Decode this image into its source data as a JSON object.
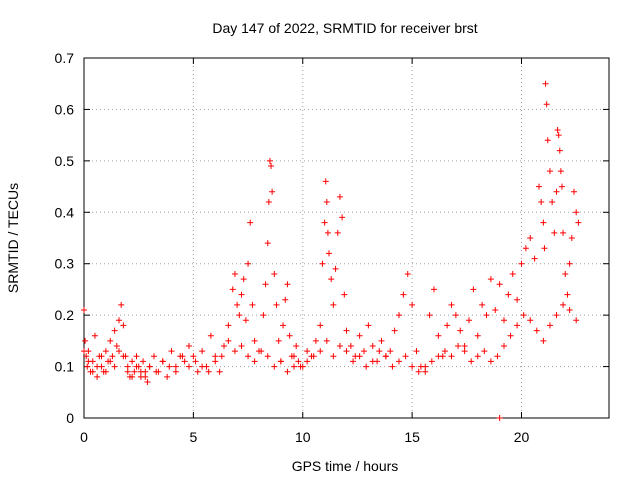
{
  "chart_data": {
    "type": "scatter",
    "title": "Day 147 of 2022, SRMTID for receiver brst",
    "xlabel": "GPS time / hours",
    "ylabel": "SRMTID / TECUs",
    "xlim": [
      0,
      24
    ],
    "ylim": [
      0,
      0.7
    ],
    "xticks": [
      0,
      5,
      10,
      15,
      20
    ],
    "yticks": [
      0,
      0.1,
      0.2,
      0.3,
      0.4,
      0.5,
      0.6,
      0.7
    ],
    "xtick_labels": [
      "0",
      "5",
      "10",
      "15",
      "20"
    ],
    "ytick_labels": [
      "0",
      "0.1",
      "0.2",
      "0.3",
      "0.4",
      "0.5",
      "0.6",
      "0.7"
    ],
    "grid": true,
    "marker": "+",
    "color": "#ff0000",
    "series": [
      {
        "name": "SRMTID",
        "x": [
          0.0,
          0.05,
          0.1,
          0.15,
          0.2,
          0.3,
          0.4,
          0.5,
          0.6,
          0.7,
          0.8,
          0.9,
          1.0,
          1.1,
          1.2,
          1.3,
          1.4,
          1.5,
          1.6,
          1.7,
          1.8,
          1.9,
          2.0,
          2.1,
          2.2,
          2.3,
          2.4,
          2.5,
          2.6,
          2.7,
          2.8,
          2.9,
          3.0,
          3.2,
          3.4,
          3.6,
          3.8,
          4.0,
          4.2,
          4.4,
          4.6,
          4.8,
          5.0,
          5.2,
          5.4,
          5.6,
          5.8,
          6.0,
          6.2,
          6.4,
          6.6,
          6.8,
          6.9,
          7.0,
          7.1,
          7.2,
          7.3,
          7.4,
          7.5,
          7.6,
          7.7,
          7.8,
          8.0,
          8.2,
          8.3,
          8.4,
          8.45,
          8.5,
          8.55,
          8.6,
          8.7,
          8.8,
          8.9,
          9.0,
          9.1,
          9.2,
          9.3,
          9.4,
          9.5,
          9.6,
          9.7,
          9.8,
          10.0,
          10.2,
          10.4,
          10.6,
          10.8,
          10.9,
          11.0,
          11.05,
          11.1,
          11.15,
          11.2,
          11.3,
          11.4,
          11.5,
          11.6,
          11.7,
          11.8,
          11.9,
          12.0,
          12.2,
          12.4,
          12.6,
          12.8,
          13.0,
          13.2,
          13.4,
          13.6,
          13.8,
          14.0,
          14.2,
          14.4,
          14.6,
          14.8,
          15.0,
          15.2,
          15.4,
          15.6,
          15.8,
          16.0,
          16.2,
          16.4,
          16.6,
          16.8,
          17.0,
          17.2,
          17.4,
          17.6,
          17.8,
          18.0,
          18.2,
          18.4,
          18.6,
          18.8,
          19.0,
          19.2,
          19.4,
          19.6,
          19.8,
          20.0,
          20.2,
          20.4,
          20.6,
          20.8,
          20.9,
          21.0,
          21.05,
          21.1,
          21.15,
          21.2,
          21.3,
          21.4,
          21.5,
          21.6,
          21.65,
          21.7,
          21.75,
          21.8,
          21.85,
          21.9,
          22.0,
          22.1,
          22.2,
          22.3,
          22.4,
          22.5,
          22.6,
          0.0,
          0.2,
          0.4,
          0.6,
          0.8,
          1.0,
          1.2,
          1.4,
          1.6,
          1.8,
          2.0,
          2.2,
          2.4,
          2.6,
          2.8,
          3.0,
          3.3,
          3.6,
          3.9,
          4.2,
          4.5,
          4.8,
          5.1,
          5.4,
          5.7,
          6.0,
          6.3,
          6.6,
          6.9,
          7.2,
          7.5,
          7.8,
          8.1,
          8.4,
          8.7,
          9.0,
          9.3,
          9.6,
          9.9,
          10.2,
          10.5,
          10.8,
          11.1,
          11.4,
          11.7,
          12.0,
          12.3,
          12.6,
          12.9,
          13.2,
          13.5,
          13.8,
          14.1,
          14.4,
          14.7,
          15.0,
          15.3,
          15.6,
          15.9,
          16.2,
          16.5,
          16.8,
          17.1,
          17.4,
          17.7,
          18.0,
          18.3,
          18.6,
          18.9,
          19.2,
          19.5,
          19.8,
          20.1,
          20.4,
          20.7,
          21.0,
          21.3,
          21.6,
          21.9,
          22.2,
          22.5,
          19.0
        ],
        "y": [
          0.21,
          0.15,
          0.12,
          0.1,
          0.13,
          0.09,
          0.11,
          0.16,
          0.08,
          0.12,
          0.1,
          0.09,
          0.13,
          0.11,
          0.15,
          0.12,
          0.17,
          0.14,
          0.19,
          0.22,
          0.18,
          0.12,
          0.1,
          0.08,
          0.11,
          0.09,
          0.12,
          0.1,
          0.08,
          0.11,
          0.09,
          0.07,
          0.1,
          0.12,
          0.09,
          0.11,
          0.08,
          0.13,
          0.1,
          0.12,
          0.11,
          0.14,
          0.12,
          0.09,
          0.13,
          0.1,
          0.16,
          0.12,
          0.09,
          0.14,
          0.18,
          0.25,
          0.28,
          0.22,
          0.2,
          0.24,
          0.27,
          0.19,
          0.3,
          0.38,
          0.22,
          0.15,
          0.13,
          0.2,
          0.26,
          0.34,
          0.42,
          0.5,
          0.49,
          0.44,
          0.28,
          0.22,
          0.15,
          0.11,
          0.18,
          0.23,
          0.26,
          0.16,
          0.12,
          0.1,
          0.14,
          0.11,
          0.1,
          0.13,
          0.12,
          0.15,
          0.18,
          0.3,
          0.38,
          0.46,
          0.42,
          0.36,
          0.32,
          0.27,
          0.22,
          0.29,
          0.36,
          0.43,
          0.39,
          0.24,
          0.17,
          0.14,
          0.12,
          0.16,
          0.13,
          0.18,
          0.14,
          0.11,
          0.15,
          0.12,
          0.13,
          0.17,
          0.2,
          0.24,
          0.28,
          0.22,
          0.13,
          0.1,
          0.09,
          0.2,
          0.25,
          0.16,
          0.12,
          0.18,
          0.22,
          0.2,
          0.17,
          0.14,
          0.19,
          0.25,
          0.16,
          0.22,
          0.2,
          0.27,
          0.21,
          0.26,
          0.19,
          0.24,
          0.28,
          0.23,
          0.3,
          0.33,
          0.35,
          0.31,
          0.45,
          0.42,
          0.38,
          0.33,
          0.65,
          0.61,
          0.54,
          0.48,
          0.42,
          0.36,
          0.44,
          0.56,
          0.55,
          0.52,
          0.48,
          0.45,
          0.36,
          0.28,
          0.24,
          0.3,
          0.35,
          0.44,
          0.4,
          0.38,
          0.13,
          0.11,
          0.09,
          0.1,
          0.12,
          0.09,
          0.11,
          0.1,
          0.13,
          0.12,
          0.09,
          0.08,
          0.1,
          0.09,
          0.08,
          0.1,
          0.09,
          0.11,
          0.1,
          0.09,
          0.12,
          0.1,
          0.11,
          0.1,
          0.09,
          0.11,
          0.12,
          0.15,
          0.13,
          0.14,
          0.12,
          0.11,
          0.13,
          0.12,
          0.1,
          0.11,
          0.09,
          0.12,
          0.1,
          0.11,
          0.12,
          0.13,
          0.15,
          0.12,
          0.14,
          0.13,
          0.11,
          0.12,
          0.1,
          0.11,
          0.13,
          0.12,
          0.1,
          0.11,
          0.12,
          0.1,
          0.09,
          0.1,
          0.11,
          0.12,
          0.13,
          0.12,
          0.14,
          0.13,
          0.11,
          0.12,
          0.13,
          0.11,
          0.12,
          0.14,
          0.16,
          0.18,
          0.2,
          0.19,
          0.17,
          0.15,
          0.18,
          0.2,
          0.22,
          0.21,
          0.19,
          0.0
        ]
      }
    ]
  }
}
